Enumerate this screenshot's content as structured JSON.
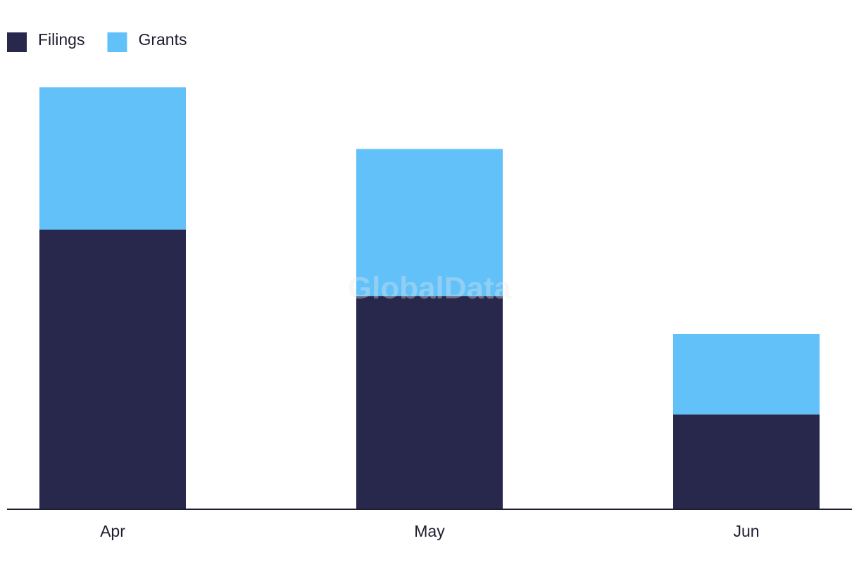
{
  "chart_data": {
    "type": "stacked_bar",
    "categories": [
      "Apr",
      "May",
      "Jun"
    ],
    "series": [
      {
        "name": "Filings",
        "color": "#27284b",
        "values": [
          59,
          45,
          20
        ]
      },
      {
        "name": "Grants",
        "color": "#62c1f8",
        "values": [
          30,
          31,
          17
        ]
      }
    ],
    "legend": "top-left",
    "watermark": "GlobalData"
  }
}
